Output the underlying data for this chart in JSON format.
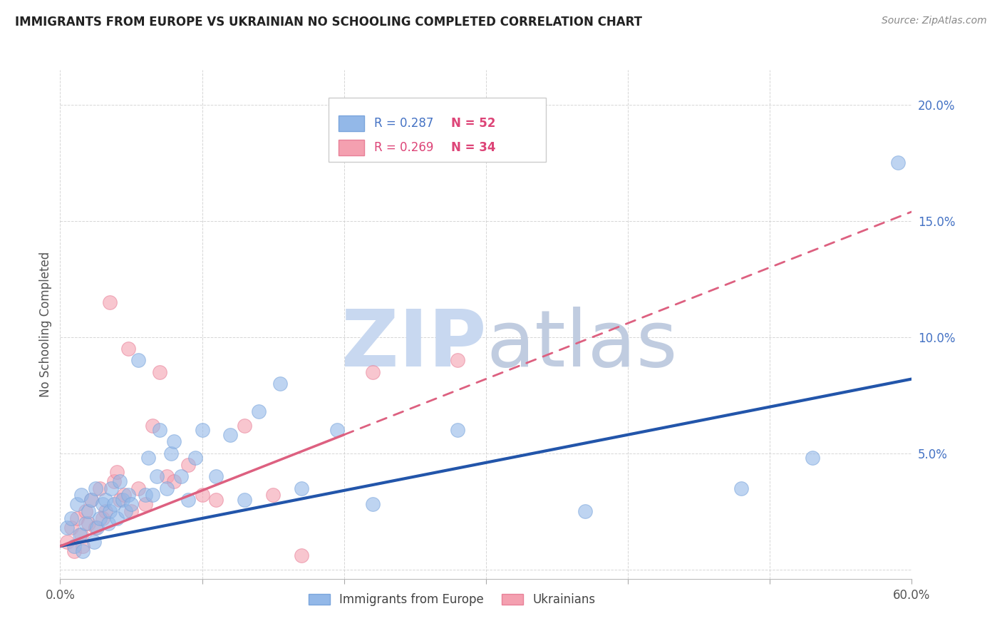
{
  "title": "IMMIGRANTS FROM EUROPE VS UKRAINIAN NO SCHOOLING COMPLETED CORRELATION CHART",
  "source": "Source: ZipAtlas.com",
  "ylabel": "No Schooling Completed",
  "xlim": [
    0.0,
    0.6
  ],
  "ylim": [
    -0.004,
    0.215
  ],
  "xtick_positions": [
    0.0,
    0.1,
    0.2,
    0.3,
    0.4,
    0.5,
    0.6
  ],
  "xtick_labels": [
    "0.0%",
    "",
    "",
    "",
    "",
    "",
    "60.0%"
  ],
  "ytick_positions": [
    0.0,
    0.05,
    0.1,
    0.15,
    0.2
  ],
  "ytick_labels": [
    "",
    "5.0%",
    "10.0%",
    "15.0%",
    "20.0%"
  ],
  "legend_r1": "R = 0.287",
  "legend_n1": "N = 52",
  "legend_r2": "R = 0.269",
  "legend_n2": "N = 34",
  "blue_scatter_color": "#93B8E8",
  "blue_scatter_edge": "#7AA5DC",
  "pink_scatter_color": "#F4A0B0",
  "pink_scatter_edge": "#E88098",
  "blue_line_color": "#2255AA",
  "pink_line_color": "#DD6080",
  "r_color": "#4472C4",
  "n_color": "#DD4477",
  "watermark_zip_color": "#C8D8F0",
  "watermark_atlas_color": "#C0CCE0",
  "blue_points_x": [
    0.005,
    0.008,
    0.01,
    0.012,
    0.014,
    0.015,
    0.016,
    0.018,
    0.02,
    0.022,
    0.024,
    0.025,
    0.026,
    0.028,
    0.03,
    0.032,
    0.034,
    0.035,
    0.036,
    0.038,
    0.04,
    0.042,
    0.044,
    0.046,
    0.048,
    0.05,
    0.055,
    0.06,
    0.062,
    0.065,
    0.068,
    0.07,
    0.075,
    0.078,
    0.08,
    0.085,
    0.09,
    0.095,
    0.1,
    0.11,
    0.12,
    0.13,
    0.14,
    0.155,
    0.17,
    0.195,
    0.22,
    0.28,
    0.37,
    0.48,
    0.53,
    0.59
  ],
  "blue_points_y": [
    0.018,
    0.022,
    0.01,
    0.028,
    0.015,
    0.032,
    0.008,
    0.02,
    0.025,
    0.03,
    0.012,
    0.035,
    0.018,
    0.022,
    0.028,
    0.03,
    0.02,
    0.025,
    0.035,
    0.028,
    0.022,
    0.038,
    0.03,
    0.025,
    0.032,
    0.028,
    0.09,
    0.032,
    0.048,
    0.032,
    0.04,
    0.06,
    0.035,
    0.05,
    0.055,
    0.04,
    0.03,
    0.048,
    0.06,
    0.04,
    0.058,
    0.03,
    0.068,
    0.08,
    0.035,
    0.06,
    0.028,
    0.06,
    0.025,
    0.035,
    0.048,
    0.175
  ],
  "pink_points_x": [
    0.005,
    0.008,
    0.01,
    0.012,
    0.015,
    0.016,
    0.018,
    0.02,
    0.022,
    0.025,
    0.028,
    0.03,
    0.032,
    0.035,
    0.038,
    0.04,
    0.042,
    0.045,
    0.048,
    0.05,
    0.055,
    0.06,
    0.065,
    0.07,
    0.075,
    0.08,
    0.09,
    0.1,
    0.11,
    0.13,
    0.15,
    0.17,
    0.22,
    0.28
  ],
  "pink_points_y": [
    0.012,
    0.018,
    0.008,
    0.022,
    0.015,
    0.01,
    0.025,
    0.02,
    0.03,
    0.018,
    0.035,
    0.022,
    0.025,
    0.115,
    0.038,
    0.042,
    0.03,
    0.032,
    0.095,
    0.025,
    0.035,
    0.028,
    0.062,
    0.085,
    0.04,
    0.038,
    0.045,
    0.032,
    0.03,
    0.062,
    0.032,
    0.006,
    0.085,
    0.09
  ],
  "blue_trend_x": [
    0.0,
    0.6
  ],
  "blue_trend_y": [
    0.01,
    0.082
  ],
  "pink_trend_x": [
    0.0,
    0.3
  ],
  "pink_trend_y": [
    0.01,
    0.082
  ]
}
